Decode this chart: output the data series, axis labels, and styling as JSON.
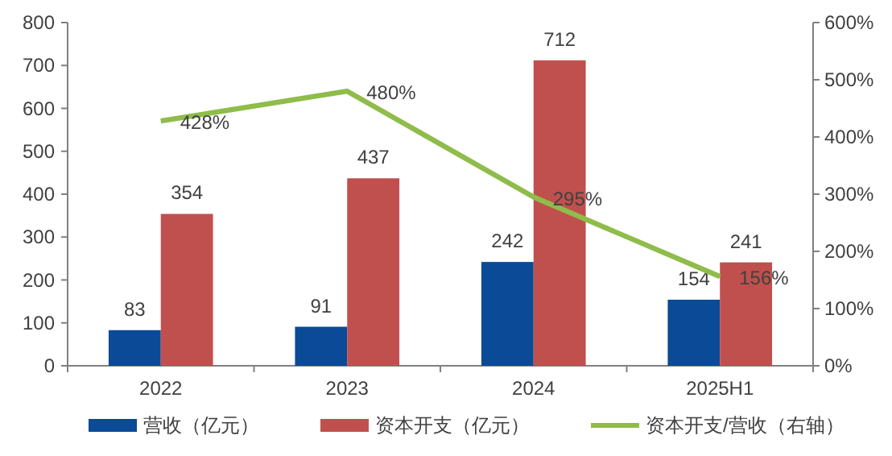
{
  "chart_data": {
    "type": "bar",
    "categories": [
      "2022",
      "2023",
      "2024",
      "2025H1"
    ],
    "series": [
      {
        "name": "营收（亿元）",
        "color": "#0a4a96",
        "values": [
          83,
          91,
          242,
          154
        ],
        "value_labels": [
          "83",
          "91",
          "242",
          "154"
        ]
      },
      {
        "name": "资本开支（亿元）",
        "color": "#c0504d",
        "values": [
          354,
          437,
          712,
          241
        ],
        "value_labels": [
          "354",
          "437",
          "712",
          "241"
        ]
      },
      {
        "name": "资本开支/营收（右轴）",
        "type": "line",
        "axis": "y2",
        "color": "#8fbc4a",
        "values": [
          428,
          480,
          295,
          156
        ],
        "value_labels": [
          "428%",
          "480%",
          "295%",
          "156%"
        ]
      }
    ],
    "ylim": [
      0,
      800
    ],
    "yticks": [
      0,
      100,
      200,
      300,
      400,
      500,
      600,
      700,
      800
    ],
    "y2lim": [
      0,
      600
    ],
    "y2ticks": [
      {
        "value": 0,
        "label": "0%"
      },
      {
        "value": 100,
        "label": "100%"
      },
      {
        "value": 200,
        "label": "200%"
      },
      {
        "value": 300,
        "label": "300%"
      },
      {
        "value": 400,
        "label": "400%"
      },
      {
        "value": 500,
        "label": "500%"
      },
      {
        "value": 600,
        "label": "600%"
      }
    ],
    "legend": "bottom",
    "grid": false
  }
}
